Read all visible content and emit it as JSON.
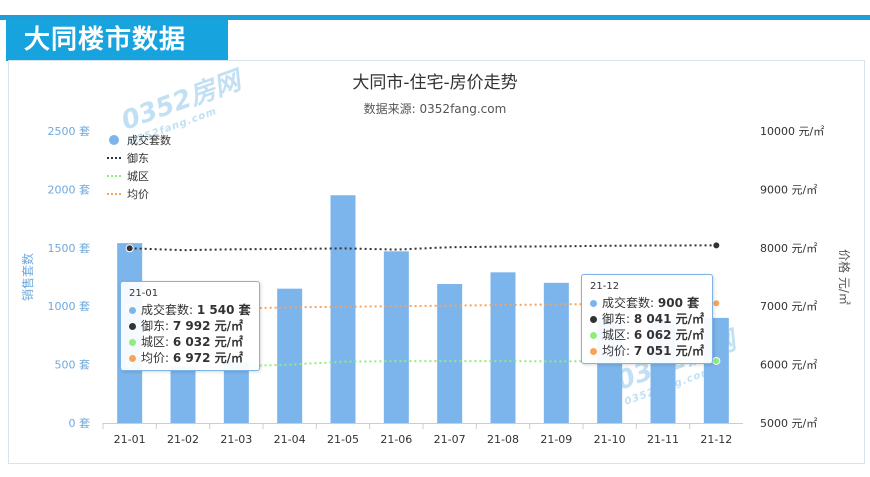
{
  "section_title": "大同楼市数据",
  "chart_data": {
    "type": "bar+line",
    "title": "大同市-住宅-房价走势",
    "subtitle": "数据来源: 0352fang.com",
    "categories": [
      "21-01",
      "21-02",
      "21-03",
      "21-04",
      "21-05",
      "21-06",
      "21-07",
      "21-08",
      "21-09",
      "21-10",
      "21-11",
      "21-12"
    ],
    "bar_series": {
      "name": "成交套数",
      "axis": "left",
      "color": "#7cb5ec",
      "values": [
        1540,
        480,
        520,
        1150,
        1950,
        1470,
        1190,
        1290,
        1200,
        900,
        880,
        900
      ]
    },
    "line_series": [
      {
        "name": "御东",
        "axis": "right",
        "color": "#333333",
        "style": "dotted",
        "values": [
          7992,
          7960,
          7975,
          7980,
          7990,
          7970,
          8010,
          8020,
          8025,
          8035,
          8040,
          8041
        ]
      },
      {
        "name": "城区",
        "axis": "right",
        "color": "#90ed7d",
        "style": "dotted",
        "values": [
          6032,
          5960,
          5970,
          6000,
          6050,
          6060,
          6060,
          6060,
          6055,
          6060,
          6065,
          6062
        ]
      },
      {
        "name": "均价",
        "axis": "right",
        "color": "#f7a35c",
        "style": "dotted",
        "values": [
          6972,
          6950,
          6960,
          6980,
          6990,
          7000,
          7010,
          7020,
          7030,
          7040,
          7045,
          7051
        ]
      }
    ],
    "left_axis": {
      "label": "销售套数",
      "ylim": [
        0,
        2500
      ],
      "ticks": [
        "0 套",
        "500 套",
        "1000 套",
        "1500 套",
        "2000 套",
        "2500 套"
      ]
    },
    "right_axis": {
      "label": "价格 元/㎡",
      "ylim": [
        5000,
        10000
      ],
      "ticks": [
        "5000 元/㎡",
        "6000 元/㎡",
        "7000 元/㎡",
        "8000 元/㎡",
        "9000 元/㎡",
        "10000 元/㎡"
      ]
    },
    "legend_placement": "top-left",
    "grid": false
  },
  "tooltips": [
    {
      "header": "21-01",
      "rows": [
        {
          "label": "成交套数:",
          "value": "1 540 套",
          "color": "#7cb5ec"
        },
        {
          "label": "御东:",
          "value": "7 992 元/㎡",
          "color": "#333333"
        },
        {
          "label": "城区:",
          "value": "6 032 元/㎡",
          "color": "#90ed7d"
        },
        {
          "label": "均价:",
          "value": "6 972 元/㎡",
          "color": "#f7a35c"
        }
      ]
    },
    {
      "header": "21-12",
      "rows": [
        {
          "label": "成交套数:",
          "value": "900 套",
          "color": "#7cb5ec"
        },
        {
          "label": "御东:",
          "value": "8 041 元/㎡",
          "color": "#333333"
        },
        {
          "label": "城区:",
          "value": "6 062 元/㎡",
          "color": "#90ed7d"
        },
        {
          "label": "均价:",
          "value": "7 051 元/㎡",
          "color": "#f7a35c"
        }
      ]
    }
  ],
  "watermark": {
    "main": "0352房网",
    "sub": "0352fang.com"
  }
}
